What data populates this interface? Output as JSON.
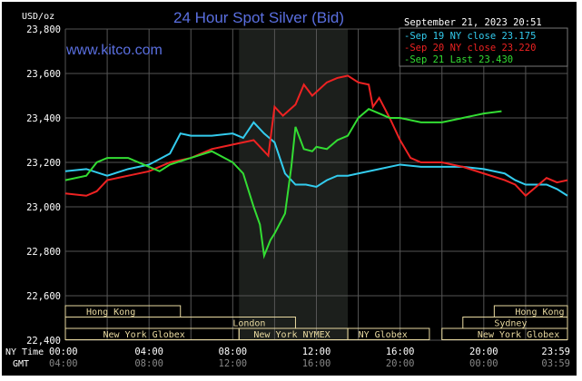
{
  "chart_data": {
    "type": "line",
    "title": "24 Hour Spot Silver (Bid)",
    "ylabel": "USD/oz",
    "watermark": "www.kitco.com",
    "timestamp": "September 21, 2023 20:51",
    "ylim": [
      22.4,
      23.8
    ],
    "xlim": [
      0,
      24
    ],
    "yticks": [
      "23,800",
      "23,600",
      "23,400",
      "23,200",
      "23,000",
      "22,800",
      "22,600",
      "22,400"
    ],
    "ytick_values": [
      23.8,
      23.6,
      23.4,
      23.2,
      23.0,
      22.8,
      22.6,
      22.4
    ],
    "x_row_label_ny": "NY Time",
    "x_row_label_gmt": "GMT",
    "xticks_ny": [
      "00:00",
      "04:00",
      "08:00",
      "12:00",
      "16:00",
      "20:00",
      "23:59"
    ],
    "xticks_gmt": [
      "04:00",
      "08:00",
      "12:00",
      "16:00",
      "20:00",
      "00:00",
      "03:59"
    ],
    "xtick_hours": [
      0,
      4,
      8,
      12,
      16,
      20,
      24
    ],
    "grid": true,
    "legend_position": "top-right",
    "highlight_hours": [
      8.3,
      13.5
    ],
    "colors": {
      "bg": "#000000",
      "grid": "#555555",
      "title": "#5a6fe0",
      "axis_text": "#ffffff",
      "gmt_text": "#888888",
      "session": "#e8d9a0",
      "highlight": "#1c1f1c"
    },
    "series": [
      {
        "name": "Sep 19 NY close 23.175",
        "color": "#33ccee",
        "points": [
          [
            0,
            23.16
          ],
          [
            1,
            23.17
          ],
          [
            2,
            23.14
          ],
          [
            3,
            23.17
          ],
          [
            4,
            23.19
          ],
          [
            5,
            23.24
          ],
          [
            5.5,
            23.33
          ],
          [
            6,
            23.32
          ],
          [
            7,
            23.32
          ],
          [
            8,
            23.33
          ],
          [
            8.5,
            23.31
          ],
          [
            9,
            23.38
          ],
          [
            9.5,
            23.33
          ],
          [
            10,
            23.29
          ],
          [
            10.5,
            23.15
          ],
          [
            11,
            23.1
          ],
          [
            11.5,
            23.1
          ],
          [
            12,
            23.09
          ],
          [
            12.5,
            23.12
          ],
          [
            13,
            23.14
          ],
          [
            13.5,
            23.14
          ],
          [
            14,
            23.15
          ],
          [
            15,
            23.17
          ],
          [
            16,
            23.19
          ],
          [
            17,
            23.18
          ],
          [
            18,
            23.18
          ],
          [
            19,
            23.18
          ],
          [
            20,
            23.17
          ],
          [
            21,
            23.15
          ],
          [
            21.5,
            23.12
          ],
          [
            22,
            23.1
          ],
          [
            23,
            23.1
          ],
          [
            23.5,
            23.08
          ],
          [
            24,
            23.05
          ]
        ]
      },
      {
        "name": "Sep 20 NY close 23.220",
        "color": "#ee2222",
        "points": [
          [
            0,
            23.06
          ],
          [
            1,
            23.05
          ],
          [
            1.5,
            23.07
          ],
          [
            2,
            23.12
          ],
          [
            3,
            23.14
          ],
          [
            4,
            23.16
          ],
          [
            5,
            23.2
          ],
          [
            6,
            23.22
          ],
          [
            7,
            23.26
          ],
          [
            8,
            23.28
          ],
          [
            9,
            23.3
          ],
          [
            9.7,
            23.23
          ],
          [
            10,
            23.45
          ],
          [
            10.4,
            23.41
          ],
          [
            11,
            23.46
          ],
          [
            11.4,
            23.55
          ],
          [
            11.8,
            23.5
          ],
          [
            12.5,
            23.56
          ],
          [
            13,
            23.58
          ],
          [
            13.5,
            23.59
          ],
          [
            14,
            23.56
          ],
          [
            14.5,
            23.55
          ],
          [
            14.7,
            23.45
          ],
          [
            15,
            23.49
          ],
          [
            15.5,
            23.4
          ],
          [
            16,
            23.3
          ],
          [
            16.5,
            23.22
          ],
          [
            17,
            23.2
          ],
          [
            18,
            23.2
          ],
          [
            19,
            23.18
          ],
          [
            20,
            23.15
          ],
          [
            21,
            23.12
          ],
          [
            21.5,
            23.1
          ],
          [
            22,
            23.05
          ],
          [
            22.5,
            23.09
          ],
          [
            23,
            23.13
          ],
          [
            23.5,
            23.11
          ],
          [
            24,
            23.12
          ]
        ]
      },
      {
        "name": "Sep 21 Last 23.430",
        "color": "#33dd33",
        "points": [
          [
            0,
            23.12
          ],
          [
            1,
            23.14
          ],
          [
            1.5,
            23.2
          ],
          [
            2,
            23.22
          ],
          [
            3,
            23.22
          ],
          [
            4,
            23.18
          ],
          [
            4.5,
            23.16
          ],
          [
            5,
            23.19
          ],
          [
            6,
            23.22
          ],
          [
            7,
            23.25
          ],
          [
            8,
            23.2
          ],
          [
            8.5,
            23.15
          ],
          [
            9,
            23.0
          ],
          [
            9.3,
            22.92
          ],
          [
            9.5,
            22.78
          ],
          [
            9.8,
            22.85
          ],
          [
            10,
            22.88
          ],
          [
            10.5,
            22.97
          ],
          [
            10.8,
            23.18
          ],
          [
            11,
            23.36
          ],
          [
            11.4,
            23.26
          ],
          [
            11.8,
            23.25
          ],
          [
            12,
            23.27
          ],
          [
            12.5,
            23.26
          ],
          [
            13,
            23.3
          ],
          [
            13.5,
            23.32
          ],
          [
            14,
            23.4
          ],
          [
            14.5,
            23.44
          ],
          [
            15,
            23.42
          ],
          [
            15.5,
            23.4
          ],
          [
            16,
            23.4
          ],
          [
            17,
            23.38
          ],
          [
            18,
            23.38
          ],
          [
            19,
            23.4
          ],
          [
            19.5,
            23.41
          ],
          [
            20,
            23.42
          ],
          [
            20.85,
            23.43
          ]
        ]
      }
    ],
    "sessions": [
      {
        "label": "Hong Kong",
        "row": 0,
        "start": 0,
        "end": 5.5,
        "label_hour": 1
      },
      {
        "label": "Hong Kong",
        "row": 0,
        "start": 20.5,
        "end": 24,
        "label_hour": 21.5
      },
      {
        "label": "London",
        "row": 1,
        "start": 0,
        "end": 11,
        "label_hour": 8
      },
      {
        "label": "Sydney",
        "row": 1,
        "start": 19,
        "end": 24,
        "label_hour": 20.5
      },
      {
        "label": "New York Globex",
        "row": 2,
        "start": 0,
        "end": 8.3,
        "label_hour": 1.8
      },
      {
        "label": "New York NYMEX",
        "row": 2,
        "start": 8.3,
        "end": 13.5,
        "label_hour": 9
      },
      {
        "label": "NY Globex",
        "row": 2,
        "start": 13.5,
        "end": 17.4,
        "label_hour": 14
      },
      {
        "label": "New York Globex",
        "row": 2,
        "start": 18,
        "end": 24,
        "label_hour": 19.7
      }
    ]
  }
}
